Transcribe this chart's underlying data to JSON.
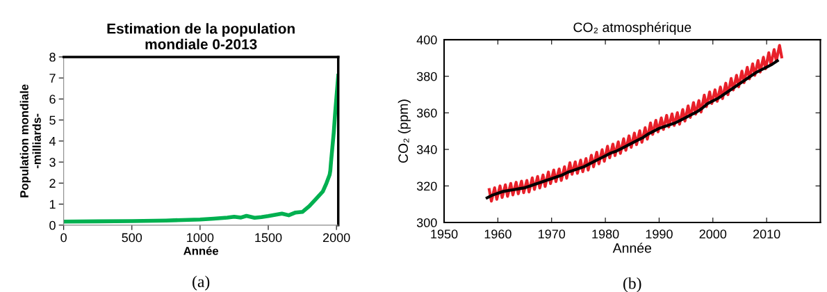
{
  "chart_data": [
    {
      "type": "line",
      "title": "Estimation de la population\nmondiale 0-2013",
      "xlabel": "Année",
      "ylabel": "Population mondiale\n-milliards-",
      "xlim": [
        0,
        2013
      ],
      "xticks": [
        0,
        500,
        1000,
        1500,
        2000
      ],
      "ylim": [
        0,
        8
      ],
      "yticks": [
        0,
        1,
        2,
        3,
        4,
        5,
        6,
        7,
        8
      ],
      "grid": false,
      "annotations": [
        "(a)"
      ],
      "series": [
        {
          "color": "#00b050",
          "x": [
            0,
            250,
            500,
            750,
            1000,
            1100,
            1200,
            1250,
            1300,
            1340,
            1400,
            1450,
            1500,
            1550,
            1600,
            1650,
            1700,
            1750,
            1800,
            1850,
            1900,
            1927,
            1950,
            1955,
            1960,
            1970,
            1980,
            1990,
            2000,
            2013
          ],
          "values": [
            0.17,
            0.18,
            0.19,
            0.22,
            0.27,
            0.31,
            0.36,
            0.4,
            0.36,
            0.44,
            0.35,
            0.38,
            0.43,
            0.49,
            0.55,
            0.47,
            0.6,
            0.63,
            0.9,
            1.25,
            1.6,
            2.0,
            2.4,
            2.6,
            3.0,
            3.7,
            4.4,
            5.3,
            6.1,
            7.1
          ]
        }
      ]
    },
    {
      "type": "line",
      "title": "CO₂ atmosphérique",
      "xlabel": "Année",
      "ylabel": "CO₂ (ppm)",
      "xlim": [
        1950,
        2020
      ],
      "xticks": [
        1950,
        1960,
        1970,
        1980,
        1990,
        2000,
        2010
      ],
      "ylim": [
        300,
        400
      ],
      "yticks": [
        300,
        320,
        340,
        360,
        380,
        400
      ],
      "grid": false,
      "annotations": [
        "(b)"
      ],
      "series": [
        {
          "color": "#e8202a",
          "x": [
            1958.4,
            1958.8,
            1959.4,
            1959.8,
            1960.4,
            1960.8,
            1961.4,
            1961.8,
            1962.4,
            1962.8,
            1963.4,
            1963.8,
            1964.4,
            1964.8,
            1965.4,
            1965.8,
            1966.4,
            1966.8,
            1967.4,
            1967.8,
            1968.4,
            1968.8,
            1969.4,
            1969.8,
            1970.4,
            1970.8,
            1971.4,
            1971.8,
            1972.4,
            1972.8,
            1973.4,
            1973.8,
            1974.4,
            1974.8,
            1975.4,
            1975.8,
            1976.4,
            1976.8,
            1977.4,
            1977.8,
            1978.4,
            1978.8,
            1979.4,
            1979.8,
            1980.4,
            1980.8,
            1981.4,
            1981.8,
            1982.4,
            1982.8,
            1983.4,
            1983.8,
            1984.4,
            1984.8,
            1985.4,
            1985.8,
            1986.4,
            1986.8,
            1987.4,
            1987.8,
            1988.4,
            1988.8,
            1989.4,
            1989.8,
            1990.4,
            1990.8,
            1991.4,
            1991.8,
            1992.4,
            1992.8,
            1993.4,
            1993.8,
            1994.4,
            1994.8,
            1995.4,
            1995.8,
            1996.4,
            1996.8,
            1997.4,
            1997.8,
            1998.4,
            1998.8,
            1999.4,
            1999.8,
            2000.4,
            2000.8,
            2001.4,
            2001.8,
            2002.4,
            2002.8,
            2003.4,
            2003.8,
            2004.4,
            2004.8,
            2005.4,
            2005.8,
            2006.4,
            2006.8,
            2007.4,
            2007.8,
            2008.4,
            2008.8,
            2009.4,
            2009.8,
            2010.4,
            2010.8,
            2011.4,
            2011.8,
            2012.4,
            2012.8
          ],
          "values": [
            318.0,
            311.7,
            319.0,
            312.7,
            320.0,
            313.7,
            320.6,
            314.3,
            321.4,
            315.1,
            322.0,
            315.7,
            322.6,
            316.3,
            323.0,
            316.7,
            324.4,
            318.1,
            325.2,
            318.9,
            326.0,
            319.7,
            327.6,
            321.3,
            328.7,
            322.4,
            329.3,
            323.0,
            330.5,
            324.2,
            332.7,
            326.4,
            333.2,
            326.9,
            334.1,
            327.8,
            335.0,
            328.7,
            336.8,
            330.5,
            338.4,
            332.1,
            339.8,
            333.5,
            341.7,
            335.4,
            342.9,
            336.6,
            344.1,
            337.8,
            345.8,
            339.5,
            347.4,
            341.1,
            348.9,
            342.6,
            350.2,
            343.9,
            351.9,
            345.6,
            354.5,
            348.2,
            355.9,
            349.6,
            357.2,
            350.9,
            358.6,
            352.3,
            359.4,
            353.1,
            360.1,
            353.8,
            361.8,
            355.5,
            363.8,
            357.5,
            365.6,
            359.3,
            366.7,
            360.4,
            369.7,
            363.4,
            371.4,
            365.1,
            372.6,
            366.3,
            374.1,
            367.8,
            376.2,
            369.9,
            378.8,
            372.5,
            380.5,
            374.2,
            382.8,
            376.5,
            384.9,
            378.6,
            386.8,
            380.5,
            388.6,
            382.3,
            390.4,
            384.1,
            392.9,
            386.6,
            394.6,
            388.3,
            396.9,
            390.6
          ]
        },
        {
          "color": "#000000",
          "x": [
            1958,
            1959,
            1960,
            1961,
            1962,
            1963,
            1964,
            1965,
            1966,
            1967,
            1968,
            1969,
            1970,
            1971,
            1972,
            1973,
            1974,
            1975,
            1976,
            1977,
            1978,
            1979,
            1980,
            1981,
            1982,
            1983,
            1984,
            1985,
            1986,
            1987,
            1988,
            1989,
            1990,
            1991,
            1992,
            1993,
            1994,
            1995,
            1996,
            1997,
            1998,
            1999,
            2000,
            2001,
            2002,
            2003,
            2004,
            2005,
            2006,
            2007,
            2008,
            2009,
            2010,
            2011,
            2012
          ],
          "values": [
            313.5,
            315,
            316,
            317,
            317.5,
            318,
            318.5,
            319,
            320,
            321,
            322,
            323,
            324,
            325,
            326,
            327.5,
            328.5,
            329.5,
            330.5,
            332,
            333.5,
            335,
            336.5,
            338,
            339,
            340.5,
            342,
            343.5,
            345,
            346.5,
            348.5,
            350,
            351.5,
            352.5,
            353.5,
            354.5,
            356,
            357.5,
            359,
            360.5,
            362.5,
            365,
            366.5,
            368,
            370,
            372,
            374,
            376,
            378,
            380,
            382,
            383.5,
            385,
            386.5,
            388.5
          ]
        }
      ]
    }
  ]
}
